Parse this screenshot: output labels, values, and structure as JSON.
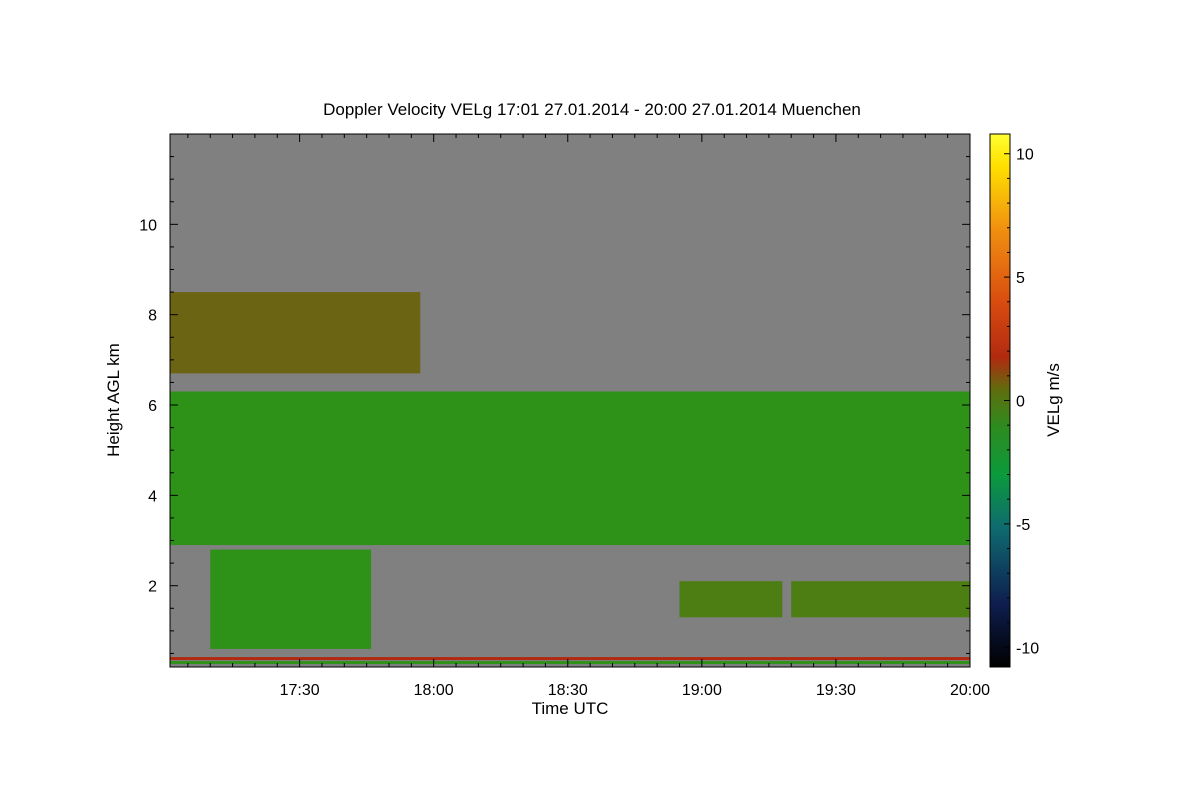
{
  "chart_data": {
    "type": "heatmap",
    "title": "Doppler Velocity VELg   17:01 27.01.2014 - 20:00 27.01.2014 Muenchen",
    "xlabel": "Time UTC",
    "ylabel": "Height AGL km",
    "colorbar_label": "VELg m/s",
    "x_ticks": [
      "17:30",
      "18:00",
      "18:30",
      "19:00",
      "19:30",
      "20:00"
    ],
    "y_ticks": [
      2,
      4,
      6,
      8,
      10
    ],
    "colorbar_ticks": [
      -10,
      -5,
      0,
      5,
      10
    ],
    "xlim": [
      "17:01",
      "20:00"
    ],
    "ylim": [
      0.2,
      12.0
    ],
    "zlim": [
      -10.8,
      10.8
    ],
    "background_color": "#808080",
    "colormap": [
      "#000000",
      "#0e1e50",
      "#0f6a70",
      "#0b9a3c",
      "#2d8b1f",
      "#5f6d0e",
      "#b02a10",
      "#d84a10",
      "#f08f10",
      "#ffe000",
      "#ffff30"
    ],
    "layers": [
      {
        "time_start": "17:01",
        "time_end": "20:00",
        "base_km": 2.9,
        "top_km": 6.3,
        "velocity_ms": -1.0
      },
      {
        "time_start": "17:01",
        "time_end": "17:57",
        "base_km": 6.7,
        "top_km": 8.5,
        "velocity_ms": 0.5
      },
      {
        "time_start": "17:10",
        "time_end": "17:46",
        "base_km": 0.6,
        "top_km": 2.8,
        "velocity_ms": -1.0
      },
      {
        "time_start": "18:55",
        "time_end": "19:18",
        "base_km": 1.3,
        "top_km": 2.1,
        "velocity_ms": 0.0
      },
      {
        "time_start": "19:20",
        "time_end": "20:00",
        "base_km": 1.3,
        "top_km": 2.1,
        "velocity_ms": -0.5
      }
    ]
  }
}
